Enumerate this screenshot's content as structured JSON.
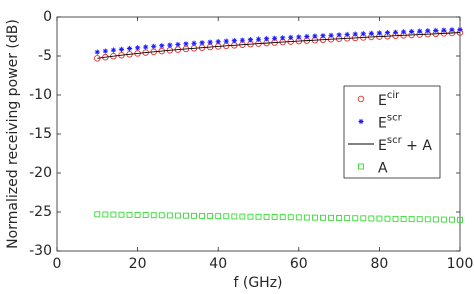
{
  "chart_data": {
    "type": "line",
    "x_label": "f (GHz)",
    "y_label": "Normalized receiving power (dB)",
    "x": [
      10,
      12,
      14,
      16,
      18,
      20,
      22,
      24,
      26,
      28,
      30,
      32,
      34,
      36,
      38,
      40,
      42,
      44,
      46,
      48,
      50,
      52,
      54,
      56,
      58,
      60,
      62,
      64,
      66,
      68,
      70,
      72,
      74,
      76,
      78,
      80,
      82,
      84,
      86,
      88,
      90,
      92,
      94,
      96,
      98,
      100
    ],
    "series": [
      {
        "name": "E",
        "name_sup": "cir",
        "color": "#e8302e",
        "marker": "circle",
        "values": [
          -5.3,
          -5.15,
          -5.02,
          -4.9,
          -4.78,
          -4.67,
          -4.56,
          -4.46,
          -4.37,
          -4.27,
          -4.18,
          -4.1,
          -4.01,
          -3.93,
          -3.85,
          -3.77,
          -3.7,
          -3.63,
          -3.55,
          -3.48,
          -3.41,
          -3.35,
          -3.28,
          -3.21,
          -3.15,
          -3.09,
          -3.03,
          -2.97,
          -2.91,
          -2.85,
          -2.79,
          -2.73,
          -2.68,
          -2.62,
          -2.56,
          -2.51,
          -2.46,
          -2.4,
          -2.35,
          -2.3,
          -2.25,
          -2.2,
          -2.15,
          -2.1,
          -2.05,
          -2.0
        ]
      },
      {
        "name": "E",
        "name_sup": "scr",
        "color": "#1a1aff",
        "marker": "asterisk",
        "values": [
          -4.5,
          -4.37,
          -4.25,
          -4.15,
          -4.04,
          -3.95,
          -3.85,
          -3.76,
          -3.68,
          -3.6,
          -3.52,
          -3.44,
          -3.37,
          -3.3,
          -3.23,
          -3.16,
          -3.09,
          -3.03,
          -2.97,
          -2.9,
          -2.84,
          -2.78,
          -2.73,
          -2.67,
          -2.61,
          -2.56,
          -2.5,
          -2.45,
          -2.4,
          -2.35,
          -2.29,
          -2.24,
          -2.19,
          -2.15,
          -2.1,
          -2.05,
          -2.0,
          -1.96,
          -1.91,
          -1.86,
          -1.82,
          -1.77,
          -1.73,
          -1.69,
          -1.64,
          -1.6
        ]
      },
      {
        "name": "E",
        "name_sup": "scr",
        "name_after": " + A",
        "color": "#000000",
        "marker": "none",
        "values": [
          -5.3,
          -5.15,
          -5.02,
          -4.9,
          -4.78,
          -4.67,
          -4.56,
          -4.46,
          -4.37,
          -4.27,
          -4.18,
          -4.1,
          -4.01,
          -3.93,
          -3.85,
          -3.77,
          -3.7,
          -3.63,
          -3.55,
          -3.48,
          -3.41,
          -3.35,
          -3.28,
          -3.21,
          -3.15,
          -3.09,
          -3.03,
          -2.97,
          -2.91,
          -2.85,
          -2.79,
          -2.73,
          -2.68,
          -2.62,
          -2.56,
          -2.51,
          -2.46,
          -2.4,
          -2.35,
          -2.3,
          -2.25,
          -2.2,
          -2.15,
          -2.1,
          -2.05,
          -2.0
        ]
      },
      {
        "name": "A",
        "color": "#33dd33",
        "marker": "square",
        "values": [
          -25.3,
          -25.32,
          -25.33,
          -25.35,
          -25.36,
          -25.38,
          -25.39,
          -25.41,
          -25.42,
          -25.44,
          -25.46,
          -25.47,
          -25.49,
          -25.5,
          -25.52,
          -25.53,
          -25.55,
          -25.57,
          -25.58,
          -25.6,
          -25.61,
          -25.63,
          -25.64,
          -25.66,
          -25.67,
          -25.69,
          -25.71,
          -25.72,
          -25.74,
          -25.75,
          -25.77,
          -25.78,
          -25.8,
          -25.81,
          -25.83,
          -25.84,
          -25.86,
          -25.88,
          -25.89,
          -25.91,
          -25.92,
          -25.94,
          -25.95,
          -25.97,
          -25.98,
          -26.0
        ]
      }
    ],
    "xlim": [
      0,
      100
    ],
    "xticks": [
      0,
      20,
      40,
      60,
      80,
      100
    ],
    "ylim": [
      -30,
      0
    ],
    "yticks": [
      -30,
      -25,
      -20,
      -15,
      -10,
      -5,
      0
    ],
    "grid": false,
    "legend": "right"
  }
}
